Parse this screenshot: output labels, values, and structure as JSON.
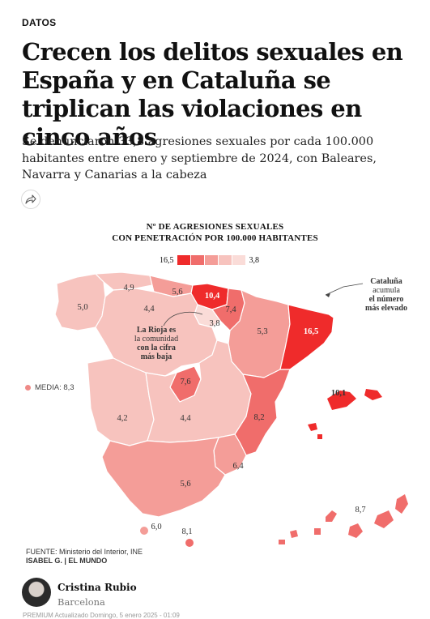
{
  "article": {
    "section": "DATOS",
    "headline": "Crecen los delitos sexuales en España y en Cataluña se triplican las violaciones en cinco años",
    "subtitle": "Se denunciaron 33,8 agresiones sexuales por cada 100.000 habitantes entre enero y septiembre de 2024, con Baleares, Navarra y Canarias a la cabeza",
    "share_icon": "share-arrow-icon"
  },
  "graphic": {
    "title_line1": "Nº DE AGRESIONES SEXUALES",
    "title_line2": "CON PENETRACIÓN POR 100.000 HABITANTES",
    "legend": {
      "max": "16,5",
      "min": "3,8",
      "colors": [
        "#ef2b2b",
        "#f06d6b",
        "#f49d98",
        "#f7c3be",
        "#fadcd8"
      ]
    },
    "regions": [
      {
        "name": "Galicia",
        "value": "5,0",
        "color": "#f7c3be"
      },
      {
        "name": "Asturias",
        "value": "4,9",
        "color": "#f7c3be"
      },
      {
        "name": "Cantabria",
        "value": "5,6",
        "color": "#f49d98"
      },
      {
        "name": "País Vasco",
        "value": "10,4",
        "color": "#ef2b2b"
      },
      {
        "name": "Navarra",
        "value": "7,4",
        "color": "#f06d6b"
      },
      {
        "name": "La Rioja",
        "value": "3,8",
        "color": "#fadcd8"
      },
      {
        "name": "Aragón",
        "value": "5,3",
        "color": "#f49d98"
      },
      {
        "name": "Cataluña",
        "value": "16,5",
        "color": "#ef2b2b"
      },
      {
        "name": "Castilla y León",
        "value": "4,4",
        "color": "#f7c3be"
      },
      {
        "name": "Madrid",
        "value": "7,6",
        "color": "#f06d6b"
      },
      {
        "name": "Extremadura",
        "value": "4,2",
        "color": "#f7c3be"
      },
      {
        "name": "Castilla-La Mancha",
        "value": "4,4",
        "color": "#f7c3be"
      },
      {
        "name": "Comunidad Valenciana",
        "value": "8,2",
        "color": "#f06d6b"
      },
      {
        "name": "Murcia",
        "value": "6,4",
        "color": "#f49d98"
      },
      {
        "name": "Andalucía",
        "value": "5,6",
        "color": "#f49d98"
      },
      {
        "name": "Baleares",
        "value": "10,1",
        "color": "#ef2b2b"
      },
      {
        "name": "Canarias",
        "value": "8,7",
        "color": "#f06d6b"
      },
      {
        "name": "Ceuta",
        "value": "6,0",
        "color": "#f49d98"
      },
      {
        "name": "Melilla",
        "value": "8,1",
        "color": "#f06d6b"
      }
    ],
    "annotation_cataluna": [
      "Cataluña",
      "acumula",
      "el número",
      "más elevado"
    ],
    "annotation_rioja": [
      "La Rioja es",
      "la comunidad",
      "con la cifra",
      "más baja"
    ],
    "media_label": "MEDIA: 8,3",
    "source": "FUENTE: Ministerio del Interior, INE",
    "credit": "ISABEL G. | EL MUNDO"
  },
  "byline": {
    "author": "Cristina Rubio",
    "city": "Barcelona",
    "meta": "PREMIUM  Actualizado Domingo, 5 enero 2025 - 01:09"
  }
}
